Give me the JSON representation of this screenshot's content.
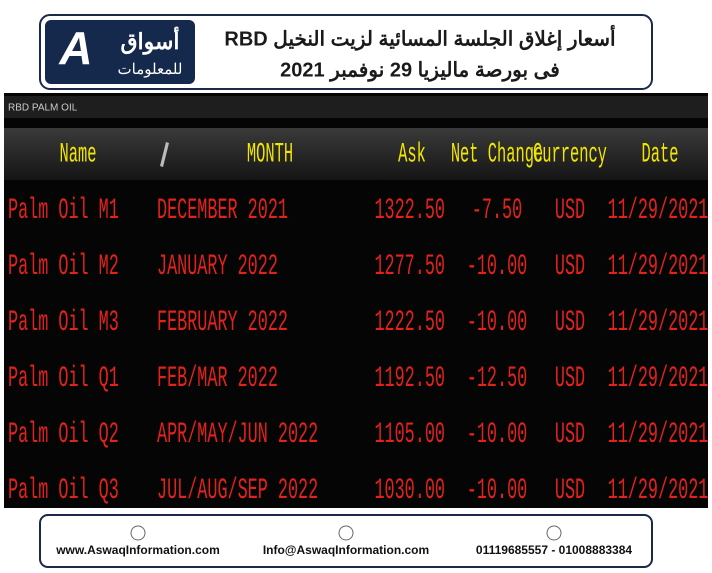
{
  "header": {
    "title_line1": "أسعار إغلاق الجلسة المسائية لزيت النخيل RBD",
    "title_line2": "فى بورصة ماليزيا 29 نوفمبر 2021",
    "logo": {
      "letter": "A",
      "name": "أسواق",
      "subtitle": "للمعلومات"
    }
  },
  "table": {
    "title": "RBD PALM OIL",
    "columns": [
      "Name",
      "MONTH",
      "Ask",
      "Net Change",
      "Currency",
      "Date"
    ],
    "rows": [
      [
        "Palm Oil M1",
        "DECEMBER 2021",
        "1322.50",
        "-7.50",
        "USD",
        "11/29/2021"
      ],
      [
        "Palm Oil M2",
        "JANUARY 2022",
        "1277.50",
        "-10.00",
        "USD",
        "11/29/2021"
      ],
      [
        "Palm Oil M3",
        "FEBRUARY 2022",
        "1222.50",
        "-10.00",
        "USD",
        "11/29/2021"
      ],
      [
        "Palm Oil Q1",
        "FEB/MAR 2022",
        "1192.50",
        "-12.50",
        "USD",
        "11/29/2021"
      ],
      [
        "Palm Oil Q2",
        "APR/MAY/JUN 2022",
        "1105.00",
        "-10.00",
        "USD",
        "11/29/2021"
      ],
      [
        "Palm Oil Q3",
        "JUL/AUG/SEP 2022",
        "1030.00",
        "-10.00",
        "USD",
        "11/29/2021"
      ]
    ]
  },
  "footer": {
    "website": "www.AswaqInformation.com",
    "email": "Info@AswaqInformation.com",
    "phone": "01119685557 - 01008883384"
  }
}
